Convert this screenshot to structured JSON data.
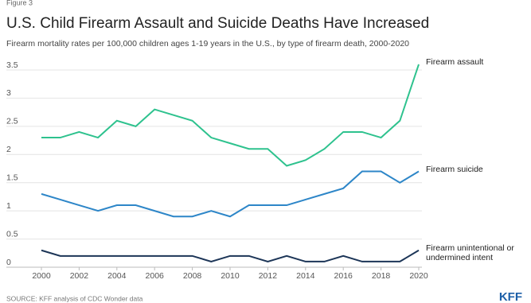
{
  "figure_label": "Figure 3",
  "source": "SOURCE: KFF analysis of CDC Wonder data",
  "logo": "KFF",
  "chart_data": {
    "type": "line",
    "title": "U.S. Child Firearm Assault and Suicide Deaths Have Increased",
    "subtitle": "Firearm mortality rates per 100,000 children ages 1-19 years in the U.S., by type of firearm death, 2000-2020",
    "x": [
      2000,
      2001,
      2002,
      2003,
      2004,
      2005,
      2006,
      2007,
      2008,
      2009,
      2010,
      2011,
      2012,
      2013,
      2014,
      2015,
      2016,
      2017,
      2018,
      2019,
      2020
    ],
    "xlim": [
      2000,
      2020
    ],
    "xticks": [
      2000,
      2002,
      2004,
      2006,
      2008,
      2010,
      2012,
      2014,
      2016,
      2018,
      2020
    ],
    "ylim": [
      0,
      3.5
    ],
    "yticks": [
      0,
      0.5,
      1,
      1.5,
      2,
      2.5,
      3,
      3.5
    ],
    "grid": true,
    "series": [
      {
        "name": "Firearm assault",
        "color": "#2ec28e",
        "values": [
          2.3,
          2.3,
          2.4,
          2.3,
          2.6,
          2.5,
          2.8,
          2.7,
          2.6,
          2.3,
          2.2,
          2.1,
          2.1,
          1.8,
          1.9,
          2.1,
          2.4,
          2.4,
          2.3,
          2.6,
          3.6
        ]
      },
      {
        "name": "Firearm suicide",
        "color": "#2d86c8",
        "values": [
          1.3,
          1.2,
          1.1,
          1.0,
          1.1,
          1.1,
          1.0,
          0.9,
          0.9,
          1.0,
          0.9,
          1.1,
          1.1,
          1.1,
          1.2,
          1.3,
          1.4,
          1.7,
          1.7,
          1.5,
          1.7
        ]
      },
      {
        "name": "Firearm unintentional or undermined intent",
        "color": "#1c3557",
        "values": [
          0.3,
          0.2,
          0.2,
          0.2,
          0.2,
          0.2,
          0.2,
          0.2,
          0.2,
          0.1,
          0.2,
          0.2,
          0.1,
          0.2,
          0.1,
          0.1,
          0.2,
          0.1,
          0.1,
          0.1,
          0.3
        ]
      }
    ]
  }
}
